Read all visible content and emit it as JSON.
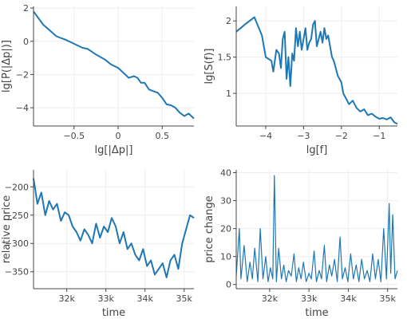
{
  "colors": {
    "series": "#1f77b4",
    "axis": "#444444",
    "grid": "#eeeeee"
  },
  "chart_data": [
    {
      "type": "line",
      "xlabel": "lg[|Δp|]",
      "ylabel": "lg[P(|Δp|)]",
      "xlim": [
        -0.96,
        0.86
      ],
      "ylim": [
        -5.1,
        2.1
      ],
      "xticks": [
        -0.5,
        0,
        0.5
      ],
      "xtick_labels": [
        "−0.5",
        "0",
        "0.5"
      ],
      "yticks": [
        -4,
        -2,
        0,
        2
      ],
      "ytick_labels": [
        "−4",
        "−2",
        "0",
        "2"
      ],
      "grid": true,
      "series": [
        {
          "x": [
            -0.96,
            -0.85,
            -0.7,
            -0.6,
            -0.5,
            -0.4,
            -0.35,
            -0.25,
            -0.15,
            -0.08,
            0.0,
            0.08,
            0.12,
            0.18,
            0.22,
            0.26,
            0.3,
            0.35,
            0.4,
            0.45,
            0.5,
            0.55,
            0.6,
            0.65,
            0.7,
            0.75,
            0.8,
            0.86
          ],
          "y": [
            1.8,
            1.0,
            0.3,
            0.1,
            -0.15,
            -0.4,
            -0.45,
            -0.8,
            -1.1,
            -1.4,
            -1.6,
            -2.0,
            -2.2,
            -2.1,
            -2.2,
            -2.5,
            -2.5,
            -2.9,
            -3.0,
            -3.1,
            -3.4,
            -3.8,
            -3.85,
            -4.0,
            -4.3,
            -4.5,
            -4.35,
            -4.65
          ]
        }
      ]
    },
    {
      "type": "line",
      "xlabel": "lg[f]",
      "ylabel": "lg[S(f)]",
      "xlim": [
        -4.78,
        -0.52
      ],
      "ylim": [
        0.55,
        2.2
      ],
      "xticks": [
        -4,
        -3,
        -2,
        -1
      ],
      "xtick_labels": [
        "−4",
        "−3",
        "−2",
        "−1"
      ],
      "yticks": [
        1,
        1.5,
        2
      ],
      "ytick_labels": [
        "1",
        "1.5",
        "2"
      ],
      "grid": true,
      "series": [
        {
          "x": [
            -4.78,
            -4.55,
            -4.3,
            -4.1,
            -4.0,
            -3.85,
            -3.8,
            -3.72,
            -3.65,
            -3.6,
            -3.55,
            -3.5,
            -3.45,
            -3.4,
            -3.35,
            -3.3,
            -3.25,
            -3.2,
            -3.15,
            -3.1,
            -3.05,
            -3.0,
            -2.95,
            -2.9,
            -2.85,
            -2.8,
            -2.75,
            -2.7,
            -2.65,
            -2.6,
            -2.55,
            -2.5,
            -2.45,
            -2.4,
            -2.35,
            -2.3,
            -2.25,
            -2.2,
            -2.1,
            -2.0,
            -1.95,
            -1.9,
            -1.8,
            -1.7,
            -1.6,
            -1.5,
            -1.4,
            -1.3,
            -1.2,
            -1.1,
            -1.0,
            -0.9,
            -0.8,
            -0.7,
            -0.6,
            -0.52
          ],
          "y": [
            1.85,
            1.95,
            2.05,
            1.8,
            1.5,
            1.45,
            1.3,
            1.6,
            1.55,
            1.35,
            1.75,
            1.85,
            1.2,
            1.5,
            1.1,
            1.55,
            1.45,
            1.9,
            1.65,
            1.85,
            1.6,
            1.75,
            1.9,
            1.6,
            1.7,
            1.75,
            1.95,
            2.0,
            1.65,
            1.75,
            1.85,
            1.7,
            1.9,
            1.75,
            1.8,
            1.65,
            1.5,
            1.45,
            1.25,
            1.15,
            1.0,
            0.95,
            0.85,
            0.9,
            0.8,
            0.75,
            0.78,
            0.7,
            0.72,
            0.68,
            0.65,
            0.66,
            0.64,
            0.67,
            0.6,
            0.58
          ]
        }
      ]
    },
    {
      "type": "line",
      "xlabel": "time",
      "ylabel": "relative price",
      "xlim": [
        31150,
        35250
      ],
      "ylim": [
        -380,
        -170
      ],
      "xticks": [
        32000,
        33000,
        34000,
        35000
      ],
      "xtick_labels": [
        "32k",
        "33k",
        "34k",
        "35k"
      ],
      "yticks": [
        -350,
        -300,
        -250,
        -200
      ],
      "ytick_labels": [
        "−350",
        "−300",
        "−250",
        "−200"
      ],
      "grid": true,
      "series": [
        {
          "x": [
            31150,
            31250,
            31350,
            31450,
            31550,
            31650,
            31750,
            31850,
            31950,
            32050,
            32150,
            32250,
            32350,
            32450,
            32550,
            32650,
            32750,
            32850,
            32950,
            33050,
            33150,
            33250,
            33350,
            33450,
            33550,
            33650,
            33750,
            33850,
            33950,
            34050,
            34150,
            34250,
            34350,
            34450,
            34550,
            34650,
            34750,
            34850,
            34950,
            35050,
            35150,
            35250
          ],
          "y": [
            -185,
            -230,
            -210,
            -250,
            -225,
            -240,
            -230,
            -260,
            -245,
            -250,
            -270,
            -280,
            -295,
            -275,
            -285,
            -300,
            -265,
            -290,
            -270,
            -280,
            -255,
            -270,
            -300,
            -280,
            -310,
            -300,
            -320,
            -330,
            -310,
            -340,
            -330,
            -355,
            -345,
            -335,
            -360,
            -330,
            -320,
            -345,
            -300,
            -275,
            -250,
            -255
          ]
        }
      ]
    },
    {
      "type": "line",
      "xlabel": "time",
      "ylabel": "price change",
      "xlim": [
        31150,
        35250
      ],
      "ylim": [
        -1.5,
        41
      ],
      "xticks": [
        32000,
        33000,
        34000,
        35000
      ],
      "xtick_labels": [
        "32k",
        "33k",
        "34k",
        "35k"
      ],
      "yticks": [
        0,
        10,
        20,
        30,
        40
      ],
      "ytick_labels": [
        "0",
        "10",
        "20",
        "30",
        "40"
      ],
      "grid": true,
      "series": [
        {
          "x": [
            31150,
            31230,
            31270,
            31350,
            31430,
            31500,
            31560,
            31620,
            31700,
            31760,
            31830,
            31900,
            31960,
            32020,
            32080,
            32120,
            32170,
            32230,
            32300,
            32360,
            32420,
            32480,
            32550,
            32620,
            32680,
            32740,
            32800,
            32860,
            32930,
            33000,
            33060,
            33130,
            33190,
            33260,
            33320,
            33390,
            33450,
            33520,
            33580,
            33650,
            33720,
            33790,
            33850,
            33920,
            33990,
            34060,
            34130,
            34200,
            34270,
            34340,
            34410,
            34480,
            34550,
            34620,
            34690,
            34760,
            34830,
            34900,
            34970,
            35040,
            35080,
            35130,
            35190,
            35250
          ],
          "y": [
            3,
            20,
            2,
            14,
            1,
            8,
            2,
            13,
            1,
            20,
            2,
            10,
            1,
            6,
            2,
            39,
            1,
            13,
            2,
            7,
            1,
            5,
            3,
            11,
            1,
            6,
            2,
            8,
            1,
            4,
            2,
            12,
            1,
            5,
            2,
            14,
            1,
            7,
            3,
            9,
            1,
            17,
            2,
            6,
            1,
            11,
            2,
            7,
            1,
            9,
            2,
            5,
            1,
            11,
            2,
            9,
            1,
            20,
            2,
            29,
            4,
            25,
            2,
            5
          ]
        }
      ]
    }
  ]
}
